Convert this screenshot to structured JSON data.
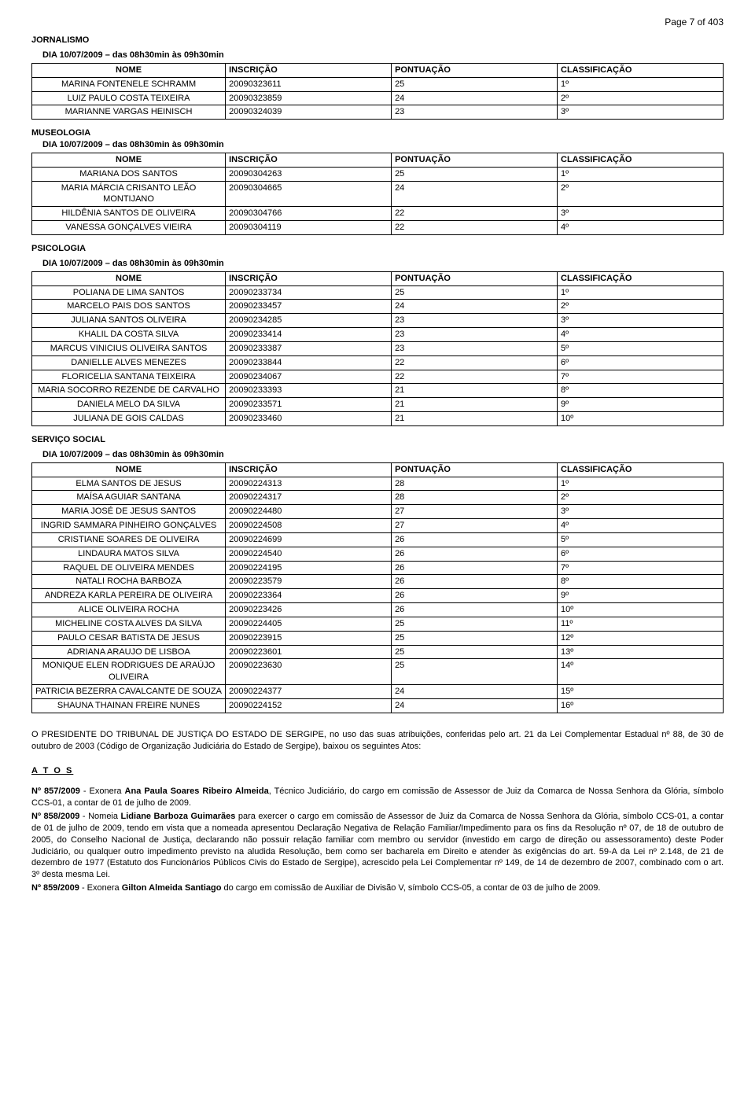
{
  "page_label": "Page 7 of 403",
  "sections": [
    {
      "title": "JORNALISMO",
      "subtitle": "DIA 10/07/2009 – das 08h30min às 09h30min",
      "columns": [
        "NOME",
        "INSCRIÇÃO",
        "PONTUAÇÃO",
        "CLASSIFICAÇÃO"
      ],
      "rows": [
        [
          "MARINA FONTENELE SCHRAMM",
          "20090323611",
          "25",
          "1º"
        ],
        [
          "LUIZ PAULO COSTA TEIXEIRA",
          "20090323859",
          "24",
          "2º"
        ],
        [
          "MARIANNE VARGAS HEINISCH",
          "20090324039",
          "23",
          "3º"
        ]
      ]
    },
    {
      "title": "MUSEOLOGIA",
      "subtitle": "DIA 10/07/2009 – das 08h30min às 09h30min",
      "indent_title": true,
      "columns": [
        "NOME",
        "INSCRIÇÃO",
        "PONTUAÇÃO",
        "CLASSIFICAÇÃO"
      ],
      "rows": [
        [
          "MARIANA DOS SANTOS",
          "20090304263",
          "25",
          "1º"
        ],
        [
          "MARIA MÁRCIA CRISANTO LEÃO MONTIJANO",
          "20090304665",
          "24",
          "2º"
        ],
        [
          "HILDÊNIA SANTOS DE OLIVEIRA",
          "20090304766",
          "22",
          "3º"
        ],
        [
          "VANESSA GONÇALVES VIEIRA",
          "20090304119",
          "22",
          "4º"
        ]
      ]
    },
    {
      "title": "PSICOLOGIA",
      "subtitle": "DIA 10/07/2009 – das 08h30min às 09h30min",
      "columns": [
        "NOME",
        "INSCRIÇÃO",
        "PONTUAÇÃO",
        "CLASSIFICAÇÃO"
      ],
      "rows": [
        [
          "POLIANA DE LIMA SANTOS",
          "20090233734",
          "25",
          "1º"
        ],
        [
          "MARCELO PAIS DOS SANTOS",
          "20090233457",
          "24",
          "2º"
        ],
        [
          "JULIANA SANTOS OLIVEIRA",
          "20090234285",
          "23",
          "3º"
        ],
        [
          "KHALIL DA COSTA SILVA",
          "20090233414",
          "23",
          "4º"
        ],
        [
          "MARCUS VINICIUS OLIVEIRA SANTOS",
          "20090233387",
          "23",
          "5º"
        ],
        [
          "DANIELLE ALVES MENEZES",
          "20090233844",
          "22",
          "6º"
        ],
        [
          "FLORICELIA SANTANA TEIXEIRA",
          "20090234067",
          "22",
          "7º"
        ],
        [
          "MARIA SOCORRO REZENDE DE CARVALHO",
          "20090233393",
          "21",
          "8º"
        ],
        [
          "DANIELA MELO DA SILVA",
          "20090233571",
          "21",
          "9º"
        ],
        [
          "JULIANA DE GOIS CALDAS",
          "20090233460",
          "21",
          "10º"
        ]
      ]
    },
    {
      "title": "SERVIÇO SOCIAL",
      "subtitle": "DIA 10/07/2009 – das 08h30min às 09h30min",
      "columns": [
        "NOME",
        "INSCRIÇÃO",
        "PONTUAÇÃO",
        "CLASSIFICAÇÃO"
      ],
      "rows": [
        [
          "ELMA SANTOS DE JESUS",
          "20090224313",
          "28",
          "1º"
        ],
        [
          "MAÍSA AGUIAR SANTANA",
          "20090224317",
          "28",
          "2º"
        ],
        [
          "MARIA JOSÉ DE JESUS SANTOS",
          "20090224480",
          "27",
          "3º"
        ],
        [
          "INGRID SAMMARA PINHEIRO GONÇALVES",
          "20090224508",
          "27",
          "4º"
        ],
        [
          "CRISTIANE SOARES DE OLIVEIRA",
          "20090224699",
          "26",
          "5º"
        ],
        [
          "LINDAURA MATOS SILVA",
          "20090224540",
          "26",
          "6º"
        ],
        [
          "RAQUEL DE OLIVEIRA MENDES",
          "20090224195",
          "26",
          "7º"
        ],
        [
          "NATALI ROCHA BARBOZA",
          "20090223579",
          "26",
          "8º"
        ],
        [
          "ANDREZA KARLA PEREIRA DE OLIVEIRA",
          "20090223364",
          "26",
          "9º"
        ],
        [
          "ALICE OLIVEIRA ROCHA",
          "20090223426",
          "26",
          "10º"
        ],
        [
          "MICHELINE COSTA ALVES DA SILVA",
          "20090224405",
          "25",
          "11º"
        ],
        [
          "PAULO CESAR BATISTA DE JESUS",
          "20090223915",
          "25",
          "12º"
        ],
        [
          "ADRIANA ARAUJO DE LISBOA",
          "20090223601",
          "25",
          "13º"
        ],
        [
          "MONIQUE ELEN RODRIGUES DE ARAÚJO OLIVEIRA",
          "20090223630",
          "25",
          "14º"
        ],
        [
          "PATRICIA BEZERRA CAVALCANTE DE SOUZA",
          "20090224377",
          "24",
          "15º"
        ],
        [
          "SHAUNA THAINAN FREIRE NUNES",
          "20090224152",
          "24",
          "16º"
        ]
      ]
    }
  ],
  "body_paragraph": "O PRESIDENTE DO TRIBUNAL DE JUSTIÇA DO ESTADO DE SERGIPE, no uso das suas atribuições, conferidas pelo art. 21 da Lei Complementar Estadual nº 88, de 30 de outubro de 2003 (Código de Organização Judiciária do Estado de Sergipe), baixou os seguintes Atos:",
  "atos_heading": "A T O S",
  "atos": [
    {
      "num": "Nº 857/2009",
      "sep": "   - Exonera ",
      "bold_name": "Ana Paula Soares Ribeiro Almeida",
      "rest": ", Técnico Judiciário, do cargo em comissão de Assessor de Juiz da Comarca de Nossa Senhora da Glória, símbolo CCS-01, a contar de 01 de julho de 2009."
    },
    {
      "num": "Nº 858/2009",
      "sep": "   - Nomeia ",
      "bold_name": "Lidiane Barboza Guimarães",
      "rest": " para exercer o cargo em comissão de Assessor de Juiz da Comarca de Nossa Senhora da Glória, símbolo CCS-01, a contar de 01 de julho de 2009, tendo em vista que a nomeada apresentou Declaração Negativa de Relação Familiar/Impedimento para os fins da Resolução nº 07, de 18 de outubro de 2005, do Conselho Nacional de Justiça, declarando não possuir relação familiar com membro ou servidor (investido em cargo de direção ou assessoramento) deste Poder Judiciário, ou qualquer outro impedimento previsto na aludida Resolução, bem como ser bacharela em Direito e atender às exigências do art. 59-A da Lei nº 2.148, de 21 de dezembro de 1977 (Estatuto dos Funcionários Públicos Civis do Estado de Sergipe), acrescido pela Lei Complementar nº 149, de 14 de dezembro de 2007, combinado com o art. 3º desta mesma Lei."
    },
    {
      "num": "Nº 859/2009",
      "sep": "   - Exonera ",
      "bold_name": "Gilton Almeida Santiago",
      "rest": " do cargo em comissão de Auxiliar de Divisão V, símbolo CCS-05, a contar de 03 de julho de 2009."
    }
  ]
}
